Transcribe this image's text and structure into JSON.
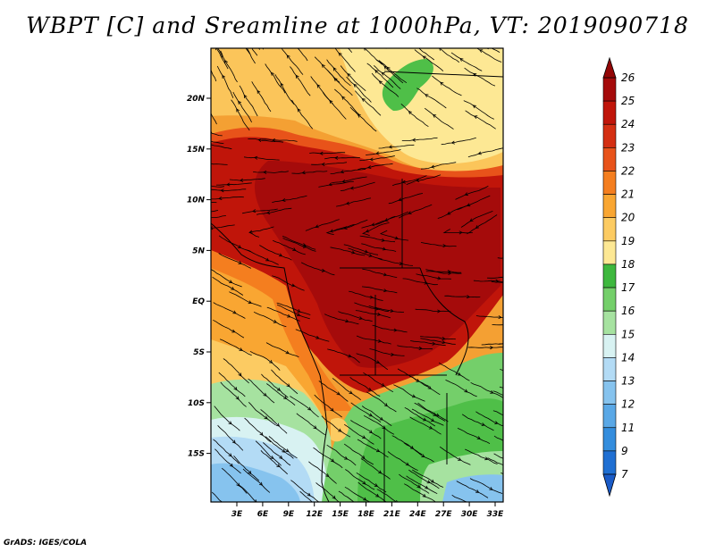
{
  "title": "WBPT [C] and Sreamline at 1000hPa, VT: 2019090718",
  "footer": "GrADS: IGES/COLA",
  "map": {
    "lon_labels": [
      "3E",
      "6E",
      "9E",
      "12E",
      "15E",
      "18E",
      "21E",
      "24E",
      "27E",
      "30E",
      "33E"
    ],
    "lat_labels": [
      "20N",
      "15N",
      "10N",
      "5N",
      "EQ",
      "5S",
      "10S",
      "15S"
    ]
  },
  "colorbar": {
    "labels": [
      "26",
      "25",
      "24",
      "23",
      "22",
      "21",
      "20",
      "19",
      "18",
      "17",
      "16",
      "15",
      "14",
      "13",
      "12",
      "11",
      "9",
      "7"
    ],
    "colors": [
      "#a50b0b",
      "#c0150a",
      "#d42f12",
      "#e8531a",
      "#f47e1f",
      "#f9a632",
      "#fccb62",
      "#fde894",
      "#3eb83e",
      "#74cf6a",
      "#a6e2a0",
      "#d8f2f2",
      "#b3dbf5",
      "#86c3ee",
      "#5aa8e6",
      "#348ddd",
      "#1f6fd2"
    ],
    "bottom_color": "#1a5bc7",
    "top_color": "#930606"
  }
}
